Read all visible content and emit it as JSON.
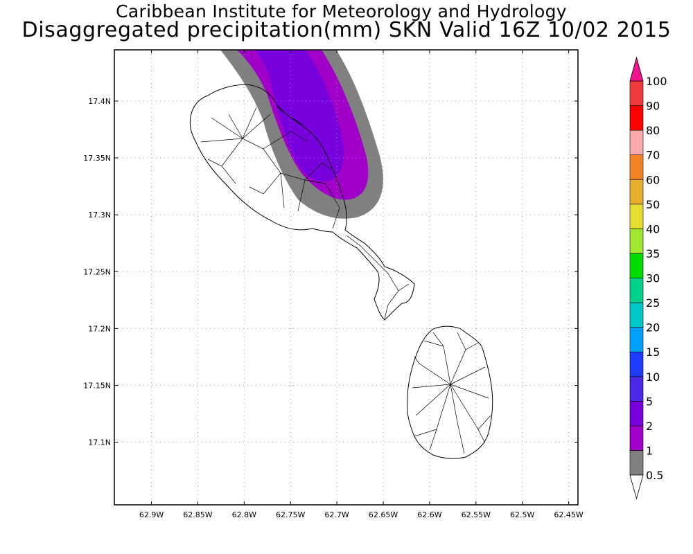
{
  "title_line1": "Caribbean Institute for Meteorology and Hydrology",
  "title_line2": "Disaggregated precipitation(mm) SKN Valid 16Z 10/02 2015",
  "map": {
    "lon_range": [
      -62.94,
      -62.44
    ],
    "lat_range": [
      17.045,
      17.445
    ],
    "lon_ticks": [
      {
        "value": -62.9,
        "label": "62.9W"
      },
      {
        "value": -62.85,
        "label": "62.85W"
      },
      {
        "value": -62.8,
        "label": "62.8W"
      },
      {
        "value": -62.75,
        "label": "62.75W"
      },
      {
        "value": -62.7,
        "label": "62.7W"
      },
      {
        "value": -62.65,
        "label": "62.65W"
      },
      {
        "value": -62.6,
        "label": "62.6W"
      },
      {
        "value": -62.55,
        "label": "62.55W"
      },
      {
        "value": -62.5,
        "label": "62.5W"
      },
      {
        "value": -62.45,
        "label": "62.45W"
      }
    ],
    "lat_ticks": [
      {
        "value": 17.4,
        "label": "17.4N"
      },
      {
        "value": 17.35,
        "label": "17.35N"
      },
      {
        "value": 17.3,
        "label": "17.3N"
      },
      {
        "value": 17.25,
        "label": "17.25N"
      },
      {
        "value": 17.2,
        "label": "17.2N"
      },
      {
        "value": 17.15,
        "label": "17.15N"
      },
      {
        "value": 17.1,
        "label": "17.1N"
      }
    ],
    "grid": true
  },
  "colorbar": {
    "levels": [
      {
        "label": "0.5",
        "color": "#ffffff"
      },
      {
        "label": "1",
        "color": "#808080"
      },
      {
        "label": "2",
        "color": "#a000c8"
      },
      {
        "label": "5",
        "color": "#7800dc"
      },
      {
        "label": "10",
        "color": "#4b28e6"
      },
      {
        "label": "15",
        "color": "#1e3cff"
      },
      {
        "label": "20",
        "color": "#00a0ff"
      },
      {
        "label": "25",
        "color": "#00c8c8"
      },
      {
        "label": "30",
        "color": "#00d28c"
      },
      {
        "label": "35",
        "color": "#00dc00"
      },
      {
        "label": "40",
        "color": "#a0e632"
      },
      {
        "label": "50",
        "color": "#e6dc32"
      },
      {
        "label": "60",
        "color": "#e6af2d"
      },
      {
        "label": "70",
        "color": "#f08228"
      },
      {
        "label": "80",
        "color": "#faaaaa"
      },
      {
        "label": "90",
        "color": "#ff0000"
      },
      {
        "label": "100",
        "color": "#f03c3c"
      }
    ],
    "top_color": "#f0148c",
    "bottom_color": "#ffffff"
  },
  "precipitation_bands": [
    {
      "label": "1",
      "color": "#808080"
    },
    {
      "label": "2",
      "color": "#a000c8"
    },
    {
      "label": "5",
      "color": "#7800dc"
    }
  ]
}
